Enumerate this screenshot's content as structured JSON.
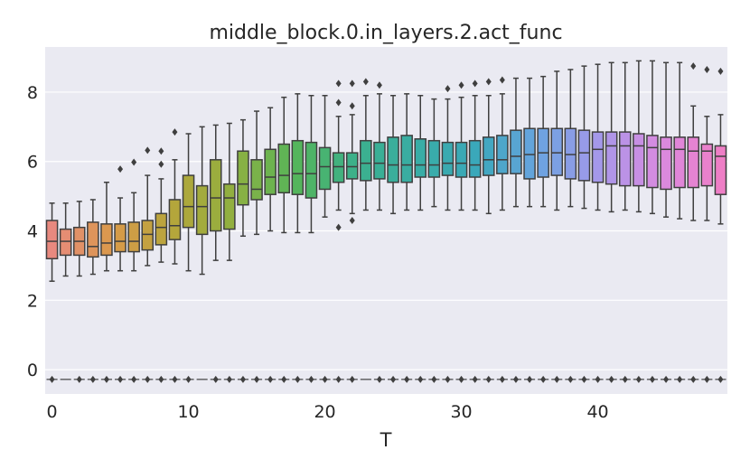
{
  "chart_data": {
    "type": "box",
    "title": "middle_block.0.in_layers.2.act_func",
    "xlabel": "T",
    "ylabel": "",
    "xticks": [
      "0",
      "10",
      "20",
      "30",
      "40"
    ],
    "yticks": [
      "0",
      "2",
      "4",
      "6",
      "8"
    ],
    "ylim": [
      -0.7,
      9.3
    ],
    "grid": true,
    "background": "#eaeaf2",
    "flier_y": -0.28,
    "palette_start": "#e8897f",
    "palette_end": "#ee7ec6",
    "categories": [
      0,
      1,
      2,
      3,
      4,
      5,
      6,
      7,
      8,
      9,
      10,
      11,
      12,
      13,
      14,
      15,
      16,
      17,
      18,
      19,
      20,
      21,
      22,
      23,
      24,
      25,
      26,
      27,
      28,
      29,
      30,
      31,
      32,
      33,
      34,
      35,
      36,
      37,
      38,
      39,
      40,
      41,
      42,
      43,
      44,
      45,
      46,
      47,
      48,
      49
    ],
    "boxes": [
      {
        "t": 0,
        "whislo": 2.55,
        "q1": 3.2,
        "med": 3.7,
        "q3": 4.3,
        "whishi": 4.8,
        "fliers_high": []
      },
      {
        "t": 1,
        "whislo": 2.7,
        "q1": 3.3,
        "med": 3.7,
        "q3": 4.05,
        "whishi": 4.8,
        "fliers_high": []
      },
      {
        "t": 2,
        "whislo": 2.7,
        "q1": 3.3,
        "med": 3.7,
        "q3": 4.1,
        "whishi": 4.85,
        "fliers_high": []
      },
      {
        "t": 3,
        "whislo": 2.75,
        "q1": 3.25,
        "med": 3.55,
        "q3": 4.25,
        "whishi": 4.9,
        "fliers_high": []
      },
      {
        "t": 4,
        "whislo": 2.85,
        "q1": 3.3,
        "med": 3.65,
        "q3": 4.2,
        "whishi": 5.4,
        "fliers_high": []
      },
      {
        "t": 5,
        "whislo": 2.85,
        "q1": 3.4,
        "med": 3.7,
        "q3": 4.2,
        "whishi": 4.95,
        "fliers_high": [
          5.78
        ]
      },
      {
        "t": 6,
        "whislo": 2.85,
        "q1": 3.4,
        "med": 3.7,
        "q3": 4.25,
        "whishi": 5.1,
        "fliers_high": [
          5.98
        ]
      },
      {
        "t": 7,
        "whislo": 3.0,
        "q1": 3.45,
        "med": 3.9,
        "q3": 4.3,
        "whishi": 5.6,
        "fliers_high": [
          6.32
        ]
      },
      {
        "t": 8,
        "whislo": 3.1,
        "q1": 3.6,
        "med": 4.1,
        "q3": 4.5,
        "whishi": 5.5,
        "fliers_high": [
          5.92,
          6.3
        ]
      },
      {
        "t": 9,
        "whislo": 3.05,
        "q1": 3.75,
        "med": 4.15,
        "q3": 4.9,
        "whishi": 6.05,
        "fliers_high": [
          6.85
        ]
      },
      {
        "t": 10,
        "whislo": 2.85,
        "q1": 4.1,
        "med": 4.7,
        "q3": 5.6,
        "whishi": 6.8,
        "fliers_high": []
      },
      {
        "t": 11,
        "whislo": 2.75,
        "q1": 3.9,
        "med": 4.7,
        "q3": 5.3,
        "whishi": 7.0,
        "fliers_high": []
      },
      {
        "t": 12,
        "whislo": 3.15,
        "q1": 4.0,
        "med": 4.95,
        "q3": 6.05,
        "whishi": 7.05,
        "fliers_high": []
      },
      {
        "t": 13,
        "whislo": 3.15,
        "q1": 4.05,
        "med": 4.95,
        "q3": 5.35,
        "whishi": 7.1,
        "fliers_high": []
      },
      {
        "t": 14,
        "whislo": 3.85,
        "q1": 4.75,
        "med": 5.35,
        "q3": 6.3,
        "whishi": 7.2,
        "fliers_high": []
      },
      {
        "t": 15,
        "whislo": 3.9,
        "q1": 4.9,
        "med": 5.2,
        "q3": 6.05,
        "whishi": 7.45,
        "fliers_high": []
      },
      {
        "t": 16,
        "whislo": 4.0,
        "q1": 5.05,
        "med": 5.55,
        "q3": 6.35,
        "whishi": 7.55,
        "fliers_high": []
      },
      {
        "t": 17,
        "whislo": 3.95,
        "q1": 5.1,
        "med": 5.6,
        "q3": 6.5,
        "whishi": 7.85,
        "fliers_high": []
      },
      {
        "t": 18,
        "whislo": 3.95,
        "q1": 5.05,
        "med": 5.65,
        "q3": 6.6,
        "whishi": 7.95,
        "fliers_high": []
      },
      {
        "t": 19,
        "whislo": 3.95,
        "q1": 4.95,
        "med": 5.65,
        "q3": 6.55,
        "whishi": 7.9,
        "fliers_high": []
      },
      {
        "t": 20,
        "whislo": 4.4,
        "q1": 5.2,
        "med": 5.85,
        "q3": 6.4,
        "whishi": 7.9,
        "fliers_high": []
      },
      {
        "t": 21,
        "whislo": 4.6,
        "q1": 5.4,
        "med": 5.85,
        "q3": 6.25,
        "whishi": 7.3,
        "fliers_low": [
          4.1
        ],
        "fliers_high": [
          7.7,
          8.25
        ]
      },
      {
        "t": 22,
        "whislo": 4.5,
        "q1": 5.5,
        "med": 5.85,
        "q3": 6.25,
        "whishi": 7.35,
        "fliers_low": [
          4.3
        ],
        "fliers_high": [
          7.6,
          8.25
        ]
      },
      {
        "t": 23,
        "whislo": 4.6,
        "q1": 5.45,
        "med": 5.95,
        "q3": 6.6,
        "whishi": 7.9,
        "fliers_high": [
          8.3
        ]
      },
      {
        "t": 24,
        "whislo": 4.6,
        "q1": 5.5,
        "med": 5.95,
        "q3": 6.55,
        "whishi": 7.95,
        "fliers_high": [
          8.2
        ]
      },
      {
        "t": 25,
        "whislo": 4.5,
        "q1": 5.4,
        "med": 5.9,
        "q3": 6.7,
        "whishi": 7.9,
        "fliers_high": []
      },
      {
        "t": 26,
        "whislo": 4.6,
        "q1": 5.4,
        "med": 5.9,
        "q3": 6.75,
        "whishi": 7.95,
        "fliers_high": []
      },
      {
        "t": 27,
        "whislo": 4.6,
        "q1": 5.55,
        "med": 5.9,
        "q3": 6.65,
        "whishi": 7.9,
        "fliers_high": []
      },
      {
        "t": 28,
        "whislo": 4.7,
        "q1": 5.55,
        "med": 5.9,
        "q3": 6.6,
        "whishi": 7.8,
        "fliers_high": []
      },
      {
        "t": 29,
        "whislo": 4.6,
        "q1": 5.6,
        "med": 5.95,
        "q3": 6.55,
        "whishi": 7.8,
        "fliers_high": [
          8.1
        ]
      },
      {
        "t": 30,
        "whislo": 4.6,
        "q1": 5.55,
        "med": 5.95,
        "q3": 6.55,
        "whishi": 7.85,
        "fliers_high": [
          8.2
        ]
      },
      {
        "t": 31,
        "whislo": 4.6,
        "q1": 5.55,
        "med": 5.9,
        "q3": 6.6,
        "whishi": 7.9,
        "fliers_high": [
          8.25
        ]
      },
      {
        "t": 32,
        "whislo": 4.5,
        "q1": 5.6,
        "med": 6.05,
        "q3": 6.7,
        "whishi": 7.9,
        "fliers_high": [
          8.3
        ]
      },
      {
        "t": 33,
        "whislo": 4.6,
        "q1": 5.65,
        "med": 6.05,
        "q3": 6.75,
        "whishi": 7.95,
        "fliers_high": [
          8.35
        ]
      },
      {
        "t": 34,
        "whislo": 4.7,
        "q1": 5.65,
        "med": 6.15,
        "q3": 6.9,
        "whishi": 8.4,
        "fliers_high": []
      },
      {
        "t": 35,
        "whislo": 4.7,
        "q1": 5.5,
        "med": 6.2,
        "q3": 6.95,
        "whishi": 8.4,
        "fliers_high": []
      },
      {
        "t": 36,
        "whislo": 4.7,
        "q1": 5.55,
        "med": 6.25,
        "q3": 6.95,
        "whishi": 8.45,
        "fliers_high": []
      },
      {
        "t": 37,
        "whislo": 4.6,
        "q1": 5.6,
        "med": 6.25,
        "q3": 6.95,
        "whishi": 8.6,
        "fliers_high": []
      },
      {
        "t": 38,
        "whislo": 4.7,
        "q1": 5.5,
        "med": 6.2,
        "q3": 6.95,
        "whishi": 8.65,
        "fliers_high": []
      },
      {
        "t": 39,
        "whislo": 4.65,
        "q1": 5.45,
        "med": 6.25,
        "q3": 6.9,
        "whishi": 8.75,
        "fliers_high": []
      },
      {
        "t": 40,
        "whislo": 4.6,
        "q1": 5.4,
        "med": 6.35,
        "q3": 6.85,
        "whishi": 8.8,
        "fliers_high": []
      },
      {
        "t": 41,
        "whislo": 4.55,
        "q1": 5.35,
        "med": 6.45,
        "q3": 6.85,
        "whishi": 8.85,
        "fliers_high": []
      },
      {
        "t": 42,
        "whislo": 4.6,
        "q1": 5.3,
        "med": 6.45,
        "q3": 6.85,
        "whishi": 8.85,
        "fliers_high": []
      },
      {
        "t": 43,
        "whislo": 4.55,
        "q1": 5.3,
        "med": 6.45,
        "q3": 6.8,
        "whishi": 8.9,
        "fliers_high": []
      },
      {
        "t": 44,
        "whislo": 4.5,
        "q1": 5.25,
        "med": 6.4,
        "q3": 6.75,
        "whishi": 8.9,
        "fliers_high": []
      },
      {
        "t": 45,
        "whislo": 4.4,
        "q1": 5.2,
        "med": 6.35,
        "q3": 6.7,
        "whishi": 8.85,
        "fliers_high": []
      },
      {
        "t": 46,
        "whislo": 4.35,
        "q1": 5.25,
        "med": 6.35,
        "q3": 6.7,
        "whishi": 8.85,
        "fliers_high": []
      },
      {
        "t": 47,
        "whislo": 4.3,
        "q1": 5.25,
        "med": 6.3,
        "q3": 6.7,
        "whishi": 7.6,
        "fliers_high": [
          8.75
        ]
      },
      {
        "t": 48,
        "whislo": 4.3,
        "q1": 5.3,
        "med": 6.3,
        "q3": 6.5,
        "whishi": 7.3,
        "fliers_high": [
          8.65
        ]
      },
      {
        "t": 49,
        "whislo": 4.2,
        "q1": 5.05,
        "med": 6.15,
        "q3": 6.45,
        "whishi": 7.35,
        "fliers_high": [
          8.6
        ]
      }
    ]
  }
}
